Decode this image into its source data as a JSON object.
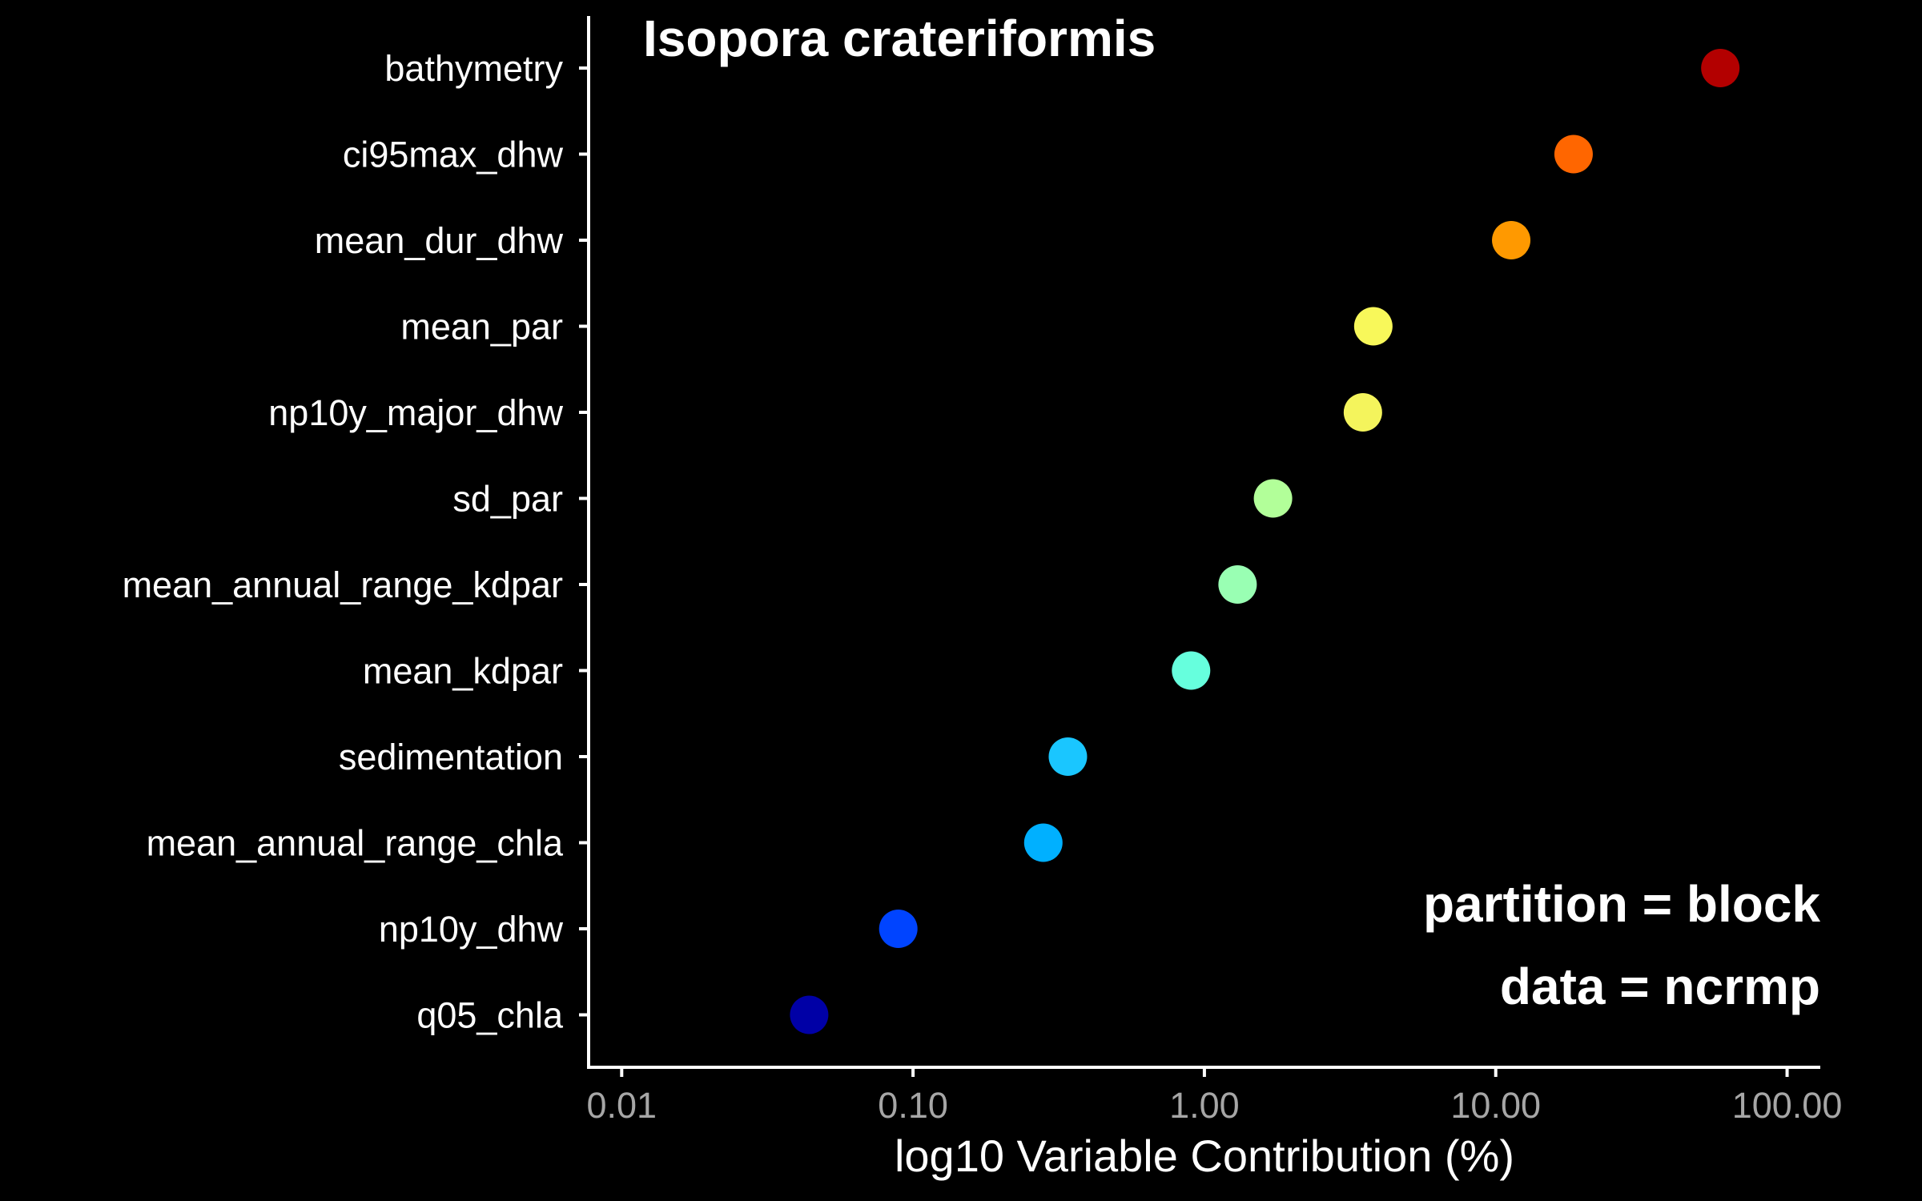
{
  "chart_data": {
    "type": "scatter",
    "title": "Isopora crateriformis",
    "xlabel": "log10 Variable Contribution (%)",
    "ylabel": "",
    "x_scale": "log10",
    "xlim": [
      0.0077,
      130
    ],
    "x_ticks": [
      0.01,
      0.1,
      1,
      10,
      100
    ],
    "x_tick_labels": [
      "0.01",
      "0.10",
      "1.00",
      "10.00",
      "100.00"
    ],
    "grid": false,
    "legend": "none",
    "categories": [
      "bathymetry",
      "ci95max_dhw",
      "mean_dur_dhw",
      "mean_par",
      "np10y_major_dhw",
      "sd_par",
      "mean_annual_range_kdpar",
      "mean_kdpar",
      "sedimentation",
      "mean_annual_range_chla",
      "np10y_dhw",
      "q05_chla"
    ],
    "values": [
      59.0,
      18.5,
      11.3,
      3.8,
      3.5,
      1.72,
      1.3,
      0.9,
      0.34,
      0.28,
      0.089,
      0.044
    ],
    "colors": [
      "#b30000",
      "#ff6600",
      "#ff9900",
      "#f8f85a",
      "#f4f45c",
      "#b2ff99",
      "#99ffb3",
      "#66ffdd",
      "#1ac6ff",
      "#00b0ff",
      "#0044ff",
      "#0000a6"
    ],
    "annotations": [
      "partition = block",
      "data = ncrmp"
    ]
  }
}
